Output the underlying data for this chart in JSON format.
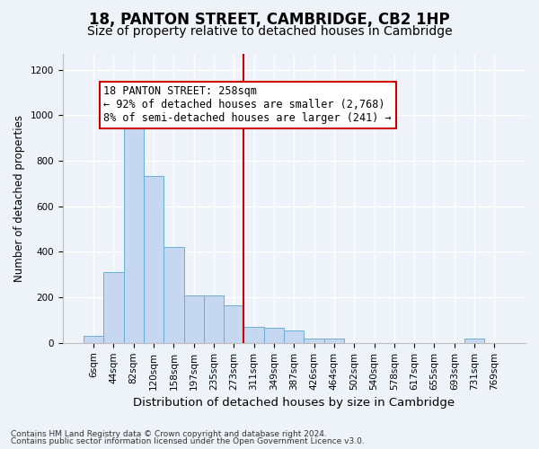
{
  "title1": "18, PANTON STREET, CAMBRIDGE, CB2 1HP",
  "title2": "Size of property relative to detached houses in Cambridge",
  "xlabel": "Distribution of detached houses by size in Cambridge",
  "ylabel": "Number of detached properties",
  "footer1": "Contains HM Land Registry data © Crown copyright and database right 2024.",
  "footer2": "Contains public sector information licensed under the Open Government Licence v3.0.",
  "annotation_title": "18 PANTON STREET: 258sqm",
  "annotation_line1": "← 92% of detached houses are smaller (2,768)",
  "annotation_line2": "8% of semi-detached houses are larger (241) →",
  "bar_labels": [
    "6sqm",
    "44sqm",
    "82sqm",
    "120sqm",
    "158sqm",
    "197sqm",
    "235sqm",
    "273sqm",
    "311sqm",
    "349sqm",
    "387sqm",
    "426sqm",
    "464sqm",
    "502sqm",
    "540sqm",
    "578sqm",
    "617sqm",
    "655sqm",
    "693sqm",
    "731sqm",
    "769sqm"
  ],
  "bar_values": [
    30,
    310,
    960,
    735,
    420,
    210,
    210,
    165,
    70,
    65,
    55,
    20,
    20,
    0,
    0,
    0,
    0,
    0,
    0,
    20,
    0
  ],
  "bar_color": "#c5d8f0",
  "bar_edge_color": "#6baed6",
  "vline_position": 7.5,
  "vline_color": "#cc0000",
  "annotation_box_color": "#cc0000",
  "bg_color": "#eef2f9",
  "plot_bg_color": "#eef2f9",
  "ylim": [
    0,
    1270
  ],
  "yticks": [
    0,
    200,
    400,
    600,
    800,
    1000,
    1200
  ],
  "grid_color": "#ffffff",
  "title1_fontsize": 12,
  "title2_fontsize": 10,
  "xlabel_fontsize": 9.5,
  "ylabel_fontsize": 8.5,
  "annotation_fontsize": 8.5,
  "tick_fontsize": 7.5,
  "footer_fontsize": 6.5
}
